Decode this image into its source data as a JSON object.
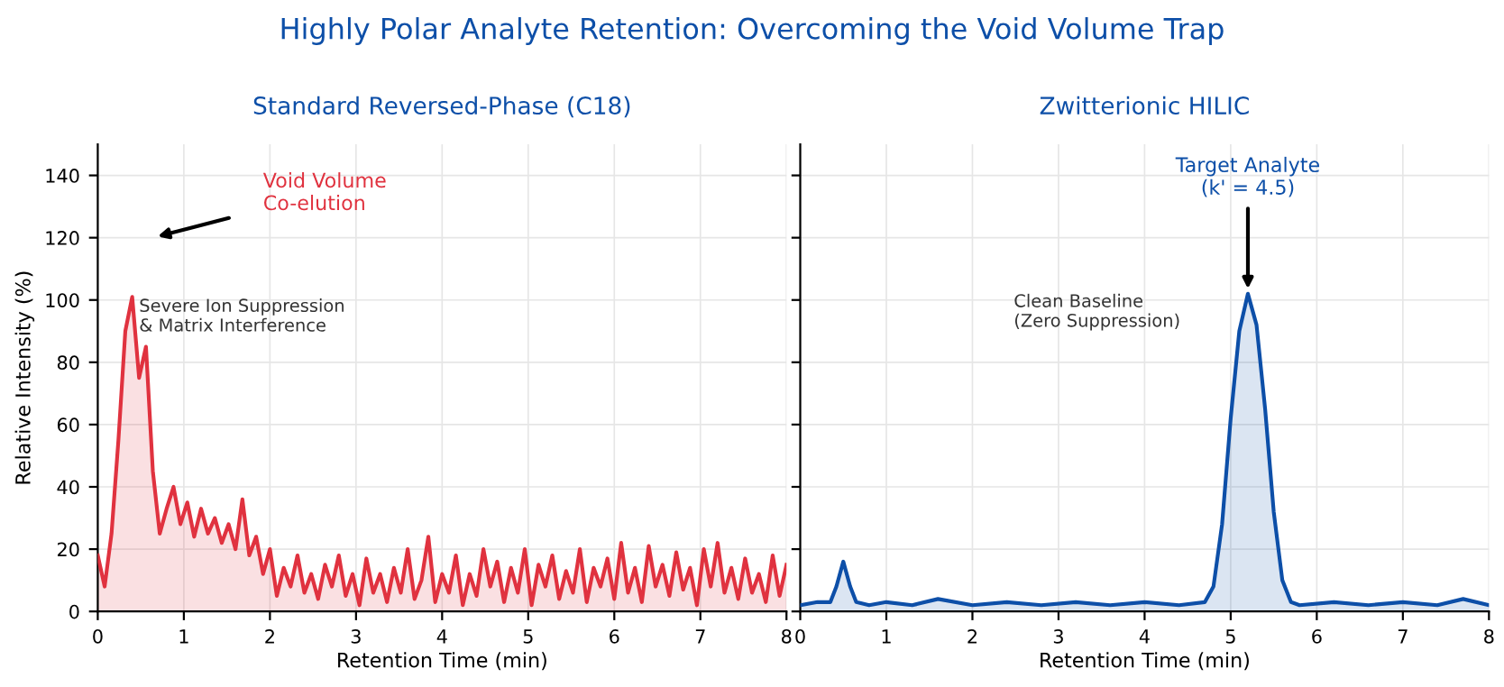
{
  "chart_data": [
    {
      "type": "area",
      "title": "Highly Polar Analyte Retention: Overcoming the Void Volume Trap",
      "subtitle": "Standard Reversed-Phase (C18)",
      "xlabel": "Retention Time (min)",
      "ylabel": "Relative Intensity (%)",
      "x": [
        0,
        0.08,
        0.16,
        0.24,
        0.32,
        0.4,
        0.48,
        0.56,
        0.64,
        0.72,
        0.8,
        0.88,
        0.96,
        1.04,
        1.12,
        1.2,
        1.28,
        1.36,
        1.44,
        1.52,
        1.6,
        1.68,
        1.76,
        1.84,
        1.92,
        2,
        2.08,
        2.16,
        2.24,
        2.32,
        2.4,
        2.48,
        2.56,
        2.64,
        2.72,
        2.8,
        2.88,
        2.96,
        3.04,
        3.12,
        3.2,
        3.28,
        3.36,
        3.44,
        3.52,
        3.6,
        3.68,
        3.76,
        3.84,
        3.92,
        4,
        4.08,
        4.16,
        4.24,
        4.32,
        4.4,
        4.48,
        4.56,
        4.64,
        4.72,
        4.8,
        4.88,
        4.96,
        5.04,
        5.12,
        5.2,
        5.28,
        5.36,
        5.44,
        5.52,
        5.6,
        5.68,
        5.76,
        5.84,
        5.92,
        6,
        6.08,
        6.16,
        6.24,
        6.32,
        6.4,
        6.48,
        6.56,
        6.64,
        6.72,
        6.8,
        6.88,
        6.96,
        7.04,
        7.12,
        7.2,
        7.28,
        7.36,
        7.44,
        7.52,
        7.6,
        7.68,
        7.76,
        7.84,
        7.92,
        8
      ],
      "series": [
        {
          "color": "#e0323f",
          "values": [
            18,
            8,
            25,
            55,
            90,
            101,
            75,
            85,
            45,
            25,
            33,
            40,
            28,
            35,
            24,
            33,
            25,
            30,
            22,
            28,
            20,
            36,
            18,
            24,
            12,
            20,
            5,
            14,
            8,
            18,
            6,
            12,
            4,
            15,
            8,
            18,
            5,
            12,
            2,
            17,
            6,
            12,
            3,
            14,
            6,
            20,
            4,
            10,
            24,
            3,
            12,
            6,
            18,
            2,
            12,
            5,
            20,
            8,
            16,
            3,
            14,
            6,
            20,
            2,
            15,
            8,
            18,
            4,
            13,
            6,
            20,
            3,
            14,
            8,
            17,
            4,
            22,
            6,
            14,
            3,
            21,
            8,
            15,
            5,
            19,
            7,
            14,
            2,
            20,
            8,
            22,
            6,
            14,
            4,
            17,
            6,
            12,
            3,
            18,
            5,
            15
          ]
        }
      ],
      "xlim": [
        0,
        8
      ],
      "ylim": [
        0,
        150
      ],
      "xticks": [
        0,
        1,
        2,
        3,
        4,
        5,
        6,
        7,
        8
      ],
      "yticks": [
        0,
        20,
        40,
        60,
        80,
        100,
        120,
        140
      ],
      "grid": true,
      "annotations": [
        "Void Volume\nCo-elution",
        "Severe Ion Suppression\n& Matrix Interference"
      ]
    },
    {
      "type": "area",
      "subtitle": "Zwitterionic HILIC",
      "xlabel": "Retention Time (min)",
      "x": [
        0,
        0.2,
        0.35,
        0.42,
        0.5,
        0.58,
        0.65,
        0.8,
        1,
        1.3,
        1.6,
        2,
        2.4,
        2.8,
        3.2,
        3.6,
        4,
        4.4,
        4.7,
        4.8,
        4.9,
        5,
        5.1,
        5.2,
        5.3,
        5.4,
        5.5,
        5.6,
        5.7,
        5.8,
        6.2,
        6.6,
        7,
        7.4,
        7.7,
        8
      ],
      "series": [
        {
          "color": "#0d4fa8",
          "values": [
            2,
            3,
            3,
            8,
            16,
            8,
            3,
            2,
            3,
            2,
            4,
            2,
            3,
            2,
            3,
            2,
            3,
            2,
            3,
            8,
            28,
            62,
            90,
            102,
            92,
            65,
            32,
            10,
            3,
            2,
            3,
            2,
            3,
            2,
            4,
            2
          ]
        }
      ],
      "xlim": [
        0,
        8
      ],
      "ylim": [
        0,
        150
      ],
      "xticks": [
        0,
        1,
        2,
        3,
        4,
        5,
        6,
        7,
        8
      ],
      "yticks": [
        0,
        20,
        40,
        60,
        80,
        100,
        120,
        140
      ],
      "grid": true,
      "tick_labels": "x",
      "annotations": [
        {
          "text": "Target Analyte\n(k' = 4.5)",
          "x": 5.2,
          "y": 102
        },
        "Clean Baseline\n(Zero Suppression)"
      ]
    }
  ]
}
